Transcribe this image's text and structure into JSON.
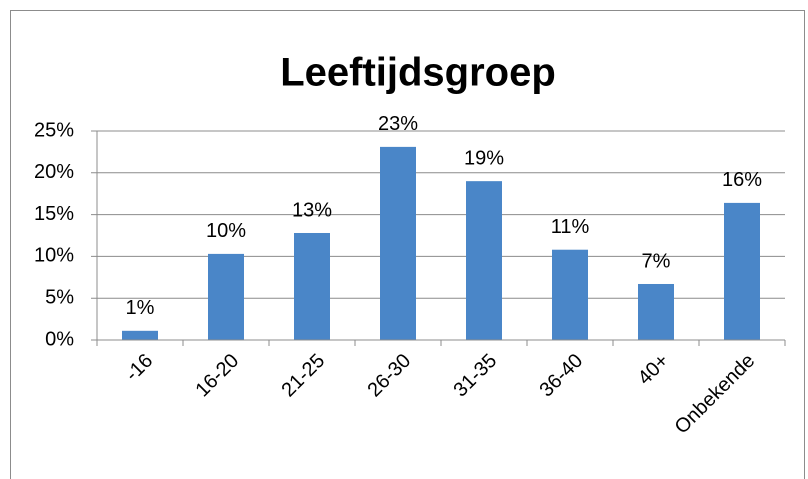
{
  "chart_data": {
    "type": "bar",
    "title": "Leeftijdsgroep",
    "categories": [
      "-16",
      "16-20",
      "21-25",
      "26-30",
      "31-35",
      "36-40",
      "40+",
      "Onbekende"
    ],
    "values": [
      1.1,
      10.3,
      12.8,
      23.1,
      19,
      10.8,
      6.7,
      16.4
    ],
    "value_labels": [
      "1%",
      "10%",
      "13%",
      "23%",
      "19%",
      "11%",
      "7%",
      "16%"
    ],
    "color": "#4a86c8",
    "ylim": [
      0,
      25
    ],
    "yticks": [
      {
        "value": 0,
        "label": "0%"
      },
      {
        "value": 5,
        "label": "5%"
      },
      {
        "value": 10,
        "label": "10%"
      },
      {
        "value": 15,
        "label": "15%"
      },
      {
        "value": 20,
        "label": "20%"
      },
      {
        "value": 25,
        "label": "25%"
      }
    ],
    "grid": true
  }
}
